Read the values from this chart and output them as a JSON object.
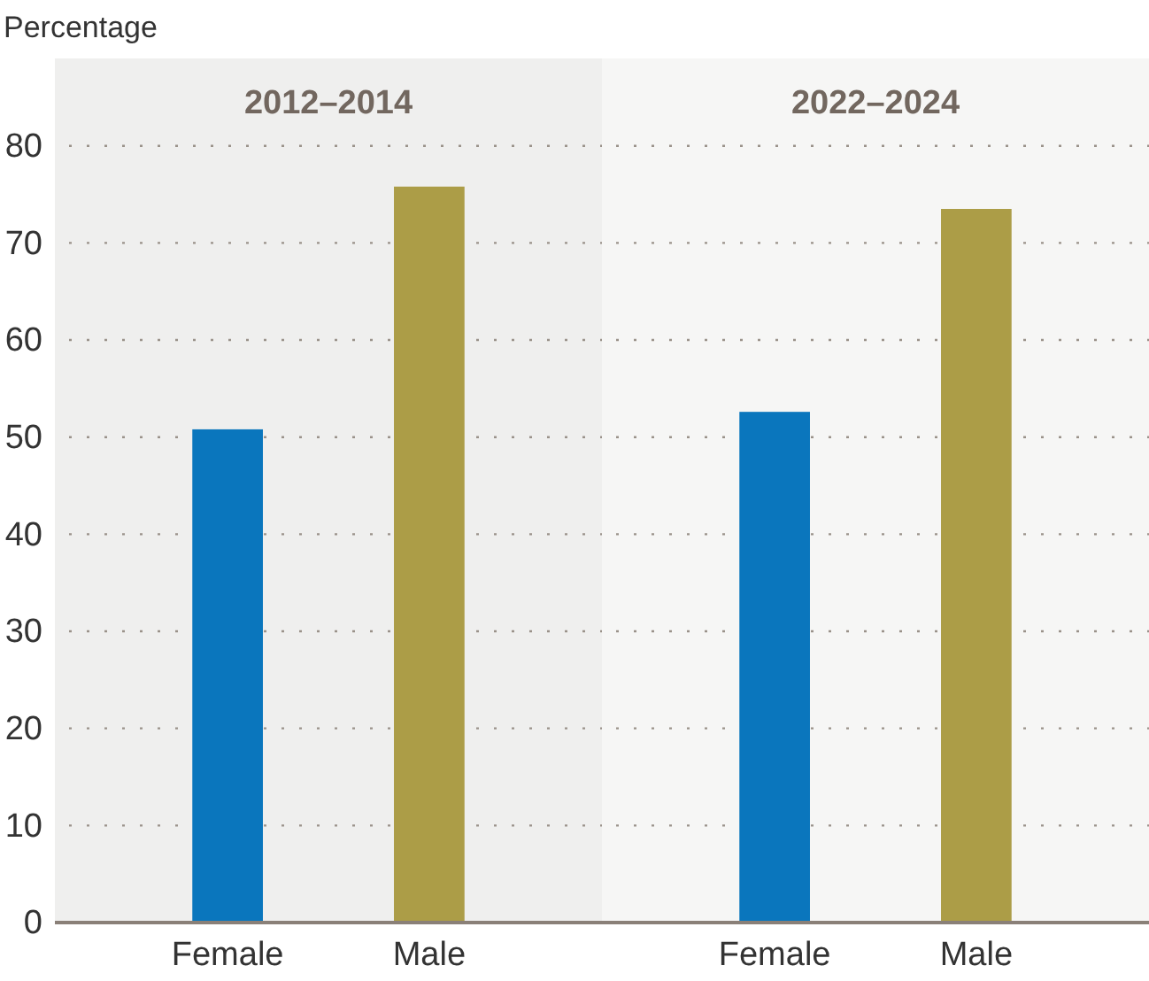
{
  "chart_data": [
    {
      "type": "bar",
      "title": "2012–2014",
      "ylabel": "Percentage",
      "categories": [
        "Female",
        "Male"
      ],
      "values": [
        50.8,
        75.8
      ],
      "colors": [
        "#0a76bd",
        "#ac9d47"
      ],
      "ylim": [
        0,
        89
      ],
      "yticks": [
        0,
        10,
        20,
        30,
        40,
        50,
        60,
        70,
        80
      ],
      "grid": "y"
    },
    {
      "type": "bar",
      "title": "2022–2024",
      "categories": [
        "Female",
        "Male"
      ],
      "values": [
        52.6,
        73.5
      ],
      "colors": [
        "#0a76bd",
        "#ac9d47"
      ],
      "ylim": [
        0,
        89
      ],
      "yticks": [
        0,
        10,
        20,
        30,
        40,
        50,
        60,
        70,
        80
      ],
      "grid": "y",
      "tick_labels": "x"
    }
  ]
}
